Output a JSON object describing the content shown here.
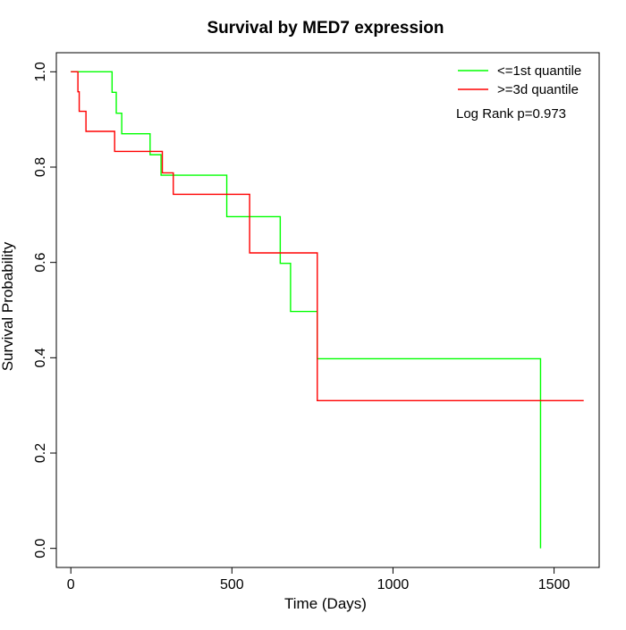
{
  "chart_data": {
    "type": "line",
    "subtype": "kaplan-meier-step",
    "title": "Survival by MED7 expression",
    "xlabel": "Time (Days)",
    "ylabel": "Survival Probability",
    "xlim": [
      -45,
      1640
    ],
    "ylim": [
      -0.04,
      1.04
    ],
    "xticks": [
      0,
      500,
      1000,
      1500
    ],
    "yticks": [
      0.0,
      0.2,
      0.4,
      0.6,
      0.8,
      1.0
    ],
    "xtick_labels": [
      "0",
      "500",
      "1000",
      "1500"
    ],
    "ytick_labels": [
      "0.0",
      "0.2",
      "0.4",
      "0.6",
      "0.8",
      "1.0"
    ],
    "grid": false,
    "legend_position": "top-right",
    "annotation": "Log Rank p=0.973",
    "series": [
      {
        "name": "<=1st quantile",
        "color": "#00ff00",
        "steps": [
          [
            0,
            1.0
          ],
          [
            128,
            0.957
          ],
          [
            141,
            0.913
          ],
          [
            158,
            0.87
          ],
          [
            246,
            0.826
          ],
          [
            280,
            0.783
          ],
          [
            484,
            0.696
          ],
          [
            650,
            0.598
          ],
          [
            682,
            0.497
          ],
          [
            765,
            0.398
          ],
          [
            1458,
            0.0
          ]
        ]
      },
      {
        "name": ">=3d quantile",
        "color": "#ff0000",
        "steps": [
          [
            0,
            1.0
          ],
          [
            22,
            0.958
          ],
          [
            26,
            0.917
          ],
          [
            47,
            0.875
          ],
          [
            136,
            0.833
          ],
          [
            284,
            0.788
          ],
          [
            318,
            0.743
          ],
          [
            555,
            0.62
          ],
          [
            765,
            0.31
          ],
          [
            1592,
            0.31
          ]
        ]
      }
    ]
  }
}
